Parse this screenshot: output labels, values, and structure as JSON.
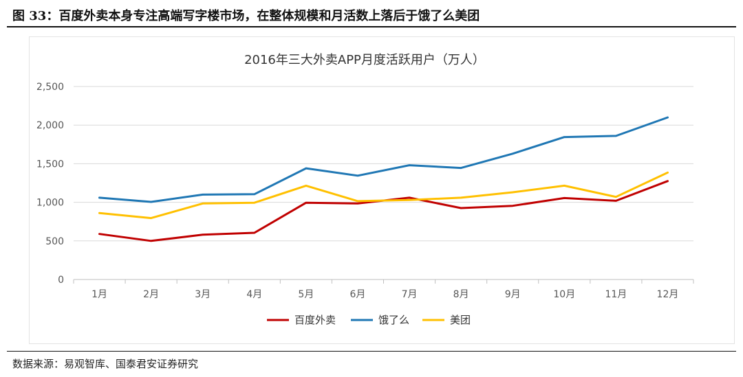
{
  "figure_title": "图 33：百度外卖本身专注高端写字楼市场，在整体规模和月活数上落后于饿了么美团",
  "source_note": "数据来源：易观智库、国泰君安证券研究",
  "chart_data": {
    "type": "line",
    "title": "2016年三大外卖APP月度活跃用户（万人）",
    "categories": [
      "1月",
      "2月",
      "3月",
      "4月",
      "5月",
      "6月",
      "7月",
      "8月",
      "9月",
      "10月",
      "11月",
      "12月"
    ],
    "ylim": [
      0,
      2500
    ],
    "yticks": [
      0,
      500,
      1000,
      1500,
      2000,
      2500
    ],
    "ytick_labels": [
      "0",
      "500",
      "1,000",
      "1,500",
      "2,000",
      "2,500"
    ],
    "grid": true,
    "legend_position": "bottom",
    "series": [
      {
        "name": "百度外卖",
        "color": "#c00000",
        "values": [
          590,
          500,
          580,
          605,
          995,
          985,
          1060,
          925,
          955,
          1055,
          1020,
          1275
        ]
      },
      {
        "name": "饿了么",
        "color": "#1f77b4",
        "values": [
          1060,
          1005,
          1100,
          1105,
          1440,
          1345,
          1480,
          1445,
          1630,
          1845,
          1860,
          2100
        ]
      },
      {
        "name": "美团",
        "color": "#ffc000",
        "values": [
          860,
          795,
          985,
          995,
          1215,
          1015,
          1030,
          1060,
          1130,
          1215,
          1070,
          1385
        ]
      }
    ]
  }
}
